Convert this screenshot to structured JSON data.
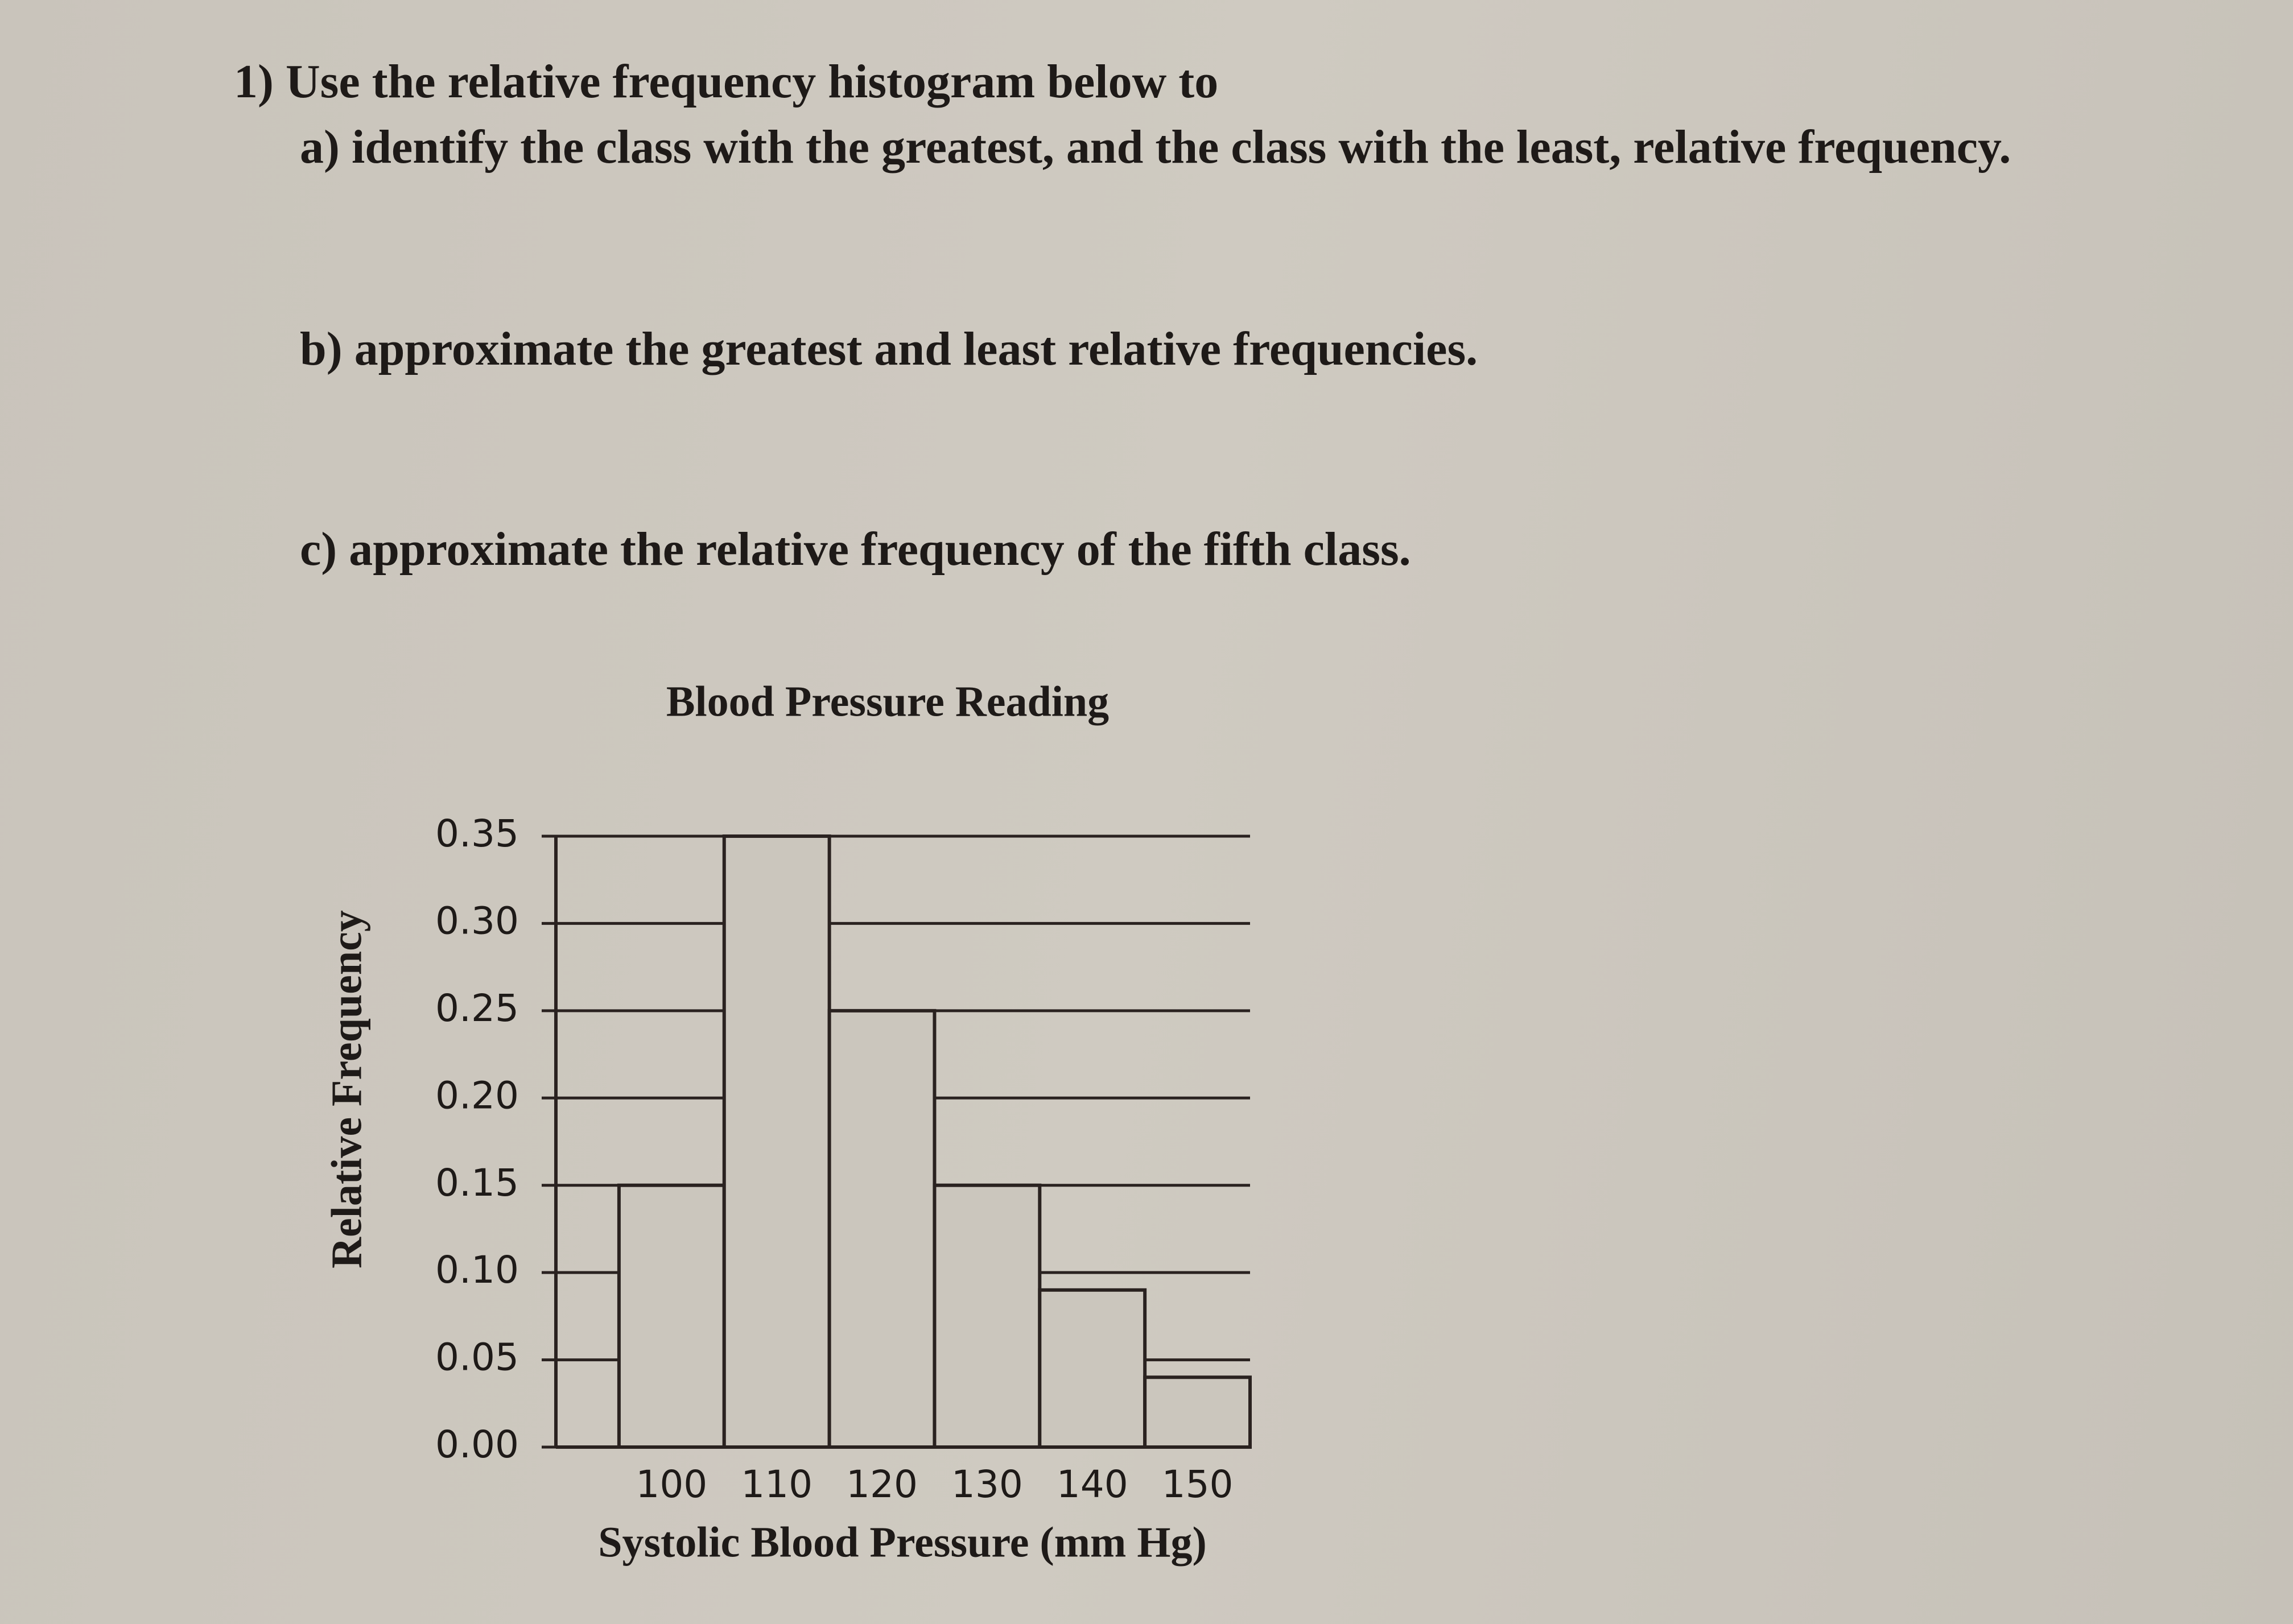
{
  "questions": {
    "q1": "1) Use the relative frequency histogram below to",
    "a": "a) identify the class with the greatest, and the class with the least, relative frequency.",
    "b": "b) approximate the greatest and least relative frequencies.",
    "c": "c) approximate the relative frequency of the fifth class."
  },
  "chart_data": {
    "type": "histogram",
    "title": "Blood Pressure Reading",
    "x_label": "Systolic Blood Pressure (mm Hg)",
    "y_label": "Relative Frequency",
    "bins": [
      95,
      105,
      115,
      125,
      135,
      145,
      155
    ],
    "values": [
      0.15,
      0.35,
      0.25,
      0.15,
      0.09,
      0.04
    ],
    "xlim": [
      89,
      155
    ],
    "xticks": [
      100,
      110,
      120,
      130,
      140,
      150
    ],
    "ylim": [
      0,
      0.35
    ],
    "yticks": [
      {
        "value": 0,
        "label": "0.00"
      },
      0.05,
      {
        "value": 0.1,
        "label": "0.10"
      },
      0.15,
      {
        "value": 0.2,
        "label": "0.20"
      },
      0.25,
      {
        "value": 0.3,
        "label": "0.30"
      },
      0.35
    ],
    "grid": true,
    "color": "#cbc6bd"
  }
}
